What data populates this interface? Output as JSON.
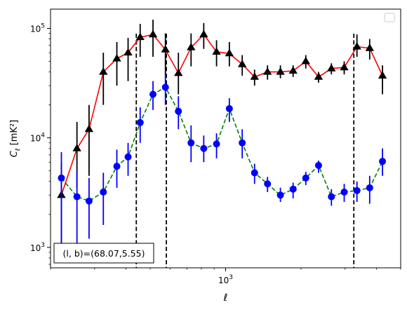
{
  "chart_data": {
    "type": "line",
    "xlabel": "ℓ",
    "ylabel_main": "C",
    "ylabel_sub": "ℓ",
    "ylabel_unit": "[mK²]",
    "x_scale": "log",
    "y_scale": "log",
    "xlim": [
      200,
      5000
    ],
    "ylim": [
      650,
      150000
    ],
    "x_tick_labels": [
      {
        "value": 1000,
        "base": "10",
        "exp": "3"
      }
    ],
    "y_tick_labels": [
      {
        "value": 1000,
        "base": "10",
        "exp": "3"
      },
      {
        "value": 10000,
        "base": "10",
        "exp": "4"
      },
      {
        "value": 100000,
        "base": "10",
        "exp": "5"
      }
    ],
    "annotation_text": "(l, b)=(68.07,5.55)",
    "legend_placement": "top-right",
    "vertical_lines": [
      440,
      580,
      3250
    ],
    "series": [
      {
        "marker": "triangle",
        "color": "#ff0000",
        "marker_color": "#000000",
        "line_style": "solid",
        "x": [
          221,
          255,
          285,
          325,
          368,
          408,
          456,
          513,
          575,
          648,
          728,
          818,
          920,
          1035,
          1165,
          1305,
          1470,
          1655,
          1860,
          2090,
          2350,
          2645,
          2975,
          3345,
          3760,
          4230
        ],
        "y": [
          3000,
          8000,
          12000,
          40000,
          53000,
          60000,
          83000,
          88000,
          64000,
          39000,
          67000,
          88000,
          61000,
          59000,
          47000,
          36000,
          40000,
          40000,
          41000,
          50000,
          36000,
          43000,
          44000,
          68000,
          66000,
          37000
        ],
        "y_low": [
          1000,
          3500,
          4500,
          20000,
          30000,
          33000,
          55000,
          55000,
          38000,
          25000,
          45000,
          65000,
          45000,
          45000,
          37000,
          30000,
          34000,
          35000,
          36000,
          43000,
          32000,
          38000,
          38000,
          55000,
          52000,
          25000
        ],
        "y_high": [
          6000,
          14000,
          20000,
          60000,
          75000,
          82000,
          110000,
          120000,
          90000,
          60000,
          90000,
          112000,
          78000,
          75000,
          57000,
          42000,
          46000,
          46000,
          46000,
          57000,
          40000,
          48000,
          50000,
          88000,
          80000,
          46000
        ]
      },
      {
        "marker": "circle",
        "color": "#008000",
        "marker_color": "#0000ff",
        "line_style": "dashed",
        "x": [
          221,
          255,
          285,
          325,
          368,
          408,
          456,
          513,
          575,
          648,
          728,
          818,
          920,
          1035,
          1165,
          1305,
          1470,
          1655,
          1860,
          2090,
          2350,
          2645,
          2975,
          3345,
          3760,
          4230
        ],
        "y": [
          4300,
          2900,
          2650,
          3200,
          5500,
          6700,
          13800,
          25000,
          29000,
          17500,
          9000,
          8000,
          8800,
          18500,
          9000,
          4800,
          3800,
          3000,
          3400,
          4300,
          5600,
          2900,
          3200,
          3300,
          3500,
          6100
        ],
        "y_low": [
          1000,
          1000,
          1200,
          1600,
          3500,
          4500,
          9000,
          18000,
          20000,
          12000,
          6000,
          6000,
          6500,
          14000,
          6500,
          3800,
          3200,
          2600,
          2800,
          3700,
          4800,
          2400,
          2600,
          2600,
          2500,
          4500
        ],
        "y_high": [
          7400,
          5000,
          4300,
          4800,
          7800,
          9000,
          19000,
          33000,
          39000,
          24000,
          13000,
          10500,
          11000,
          23000,
          12000,
          5800,
          4400,
          3500,
          3900,
          4900,
          6200,
          3400,
          3800,
          4000,
          4500,
          8000
        ]
      }
    ]
  }
}
